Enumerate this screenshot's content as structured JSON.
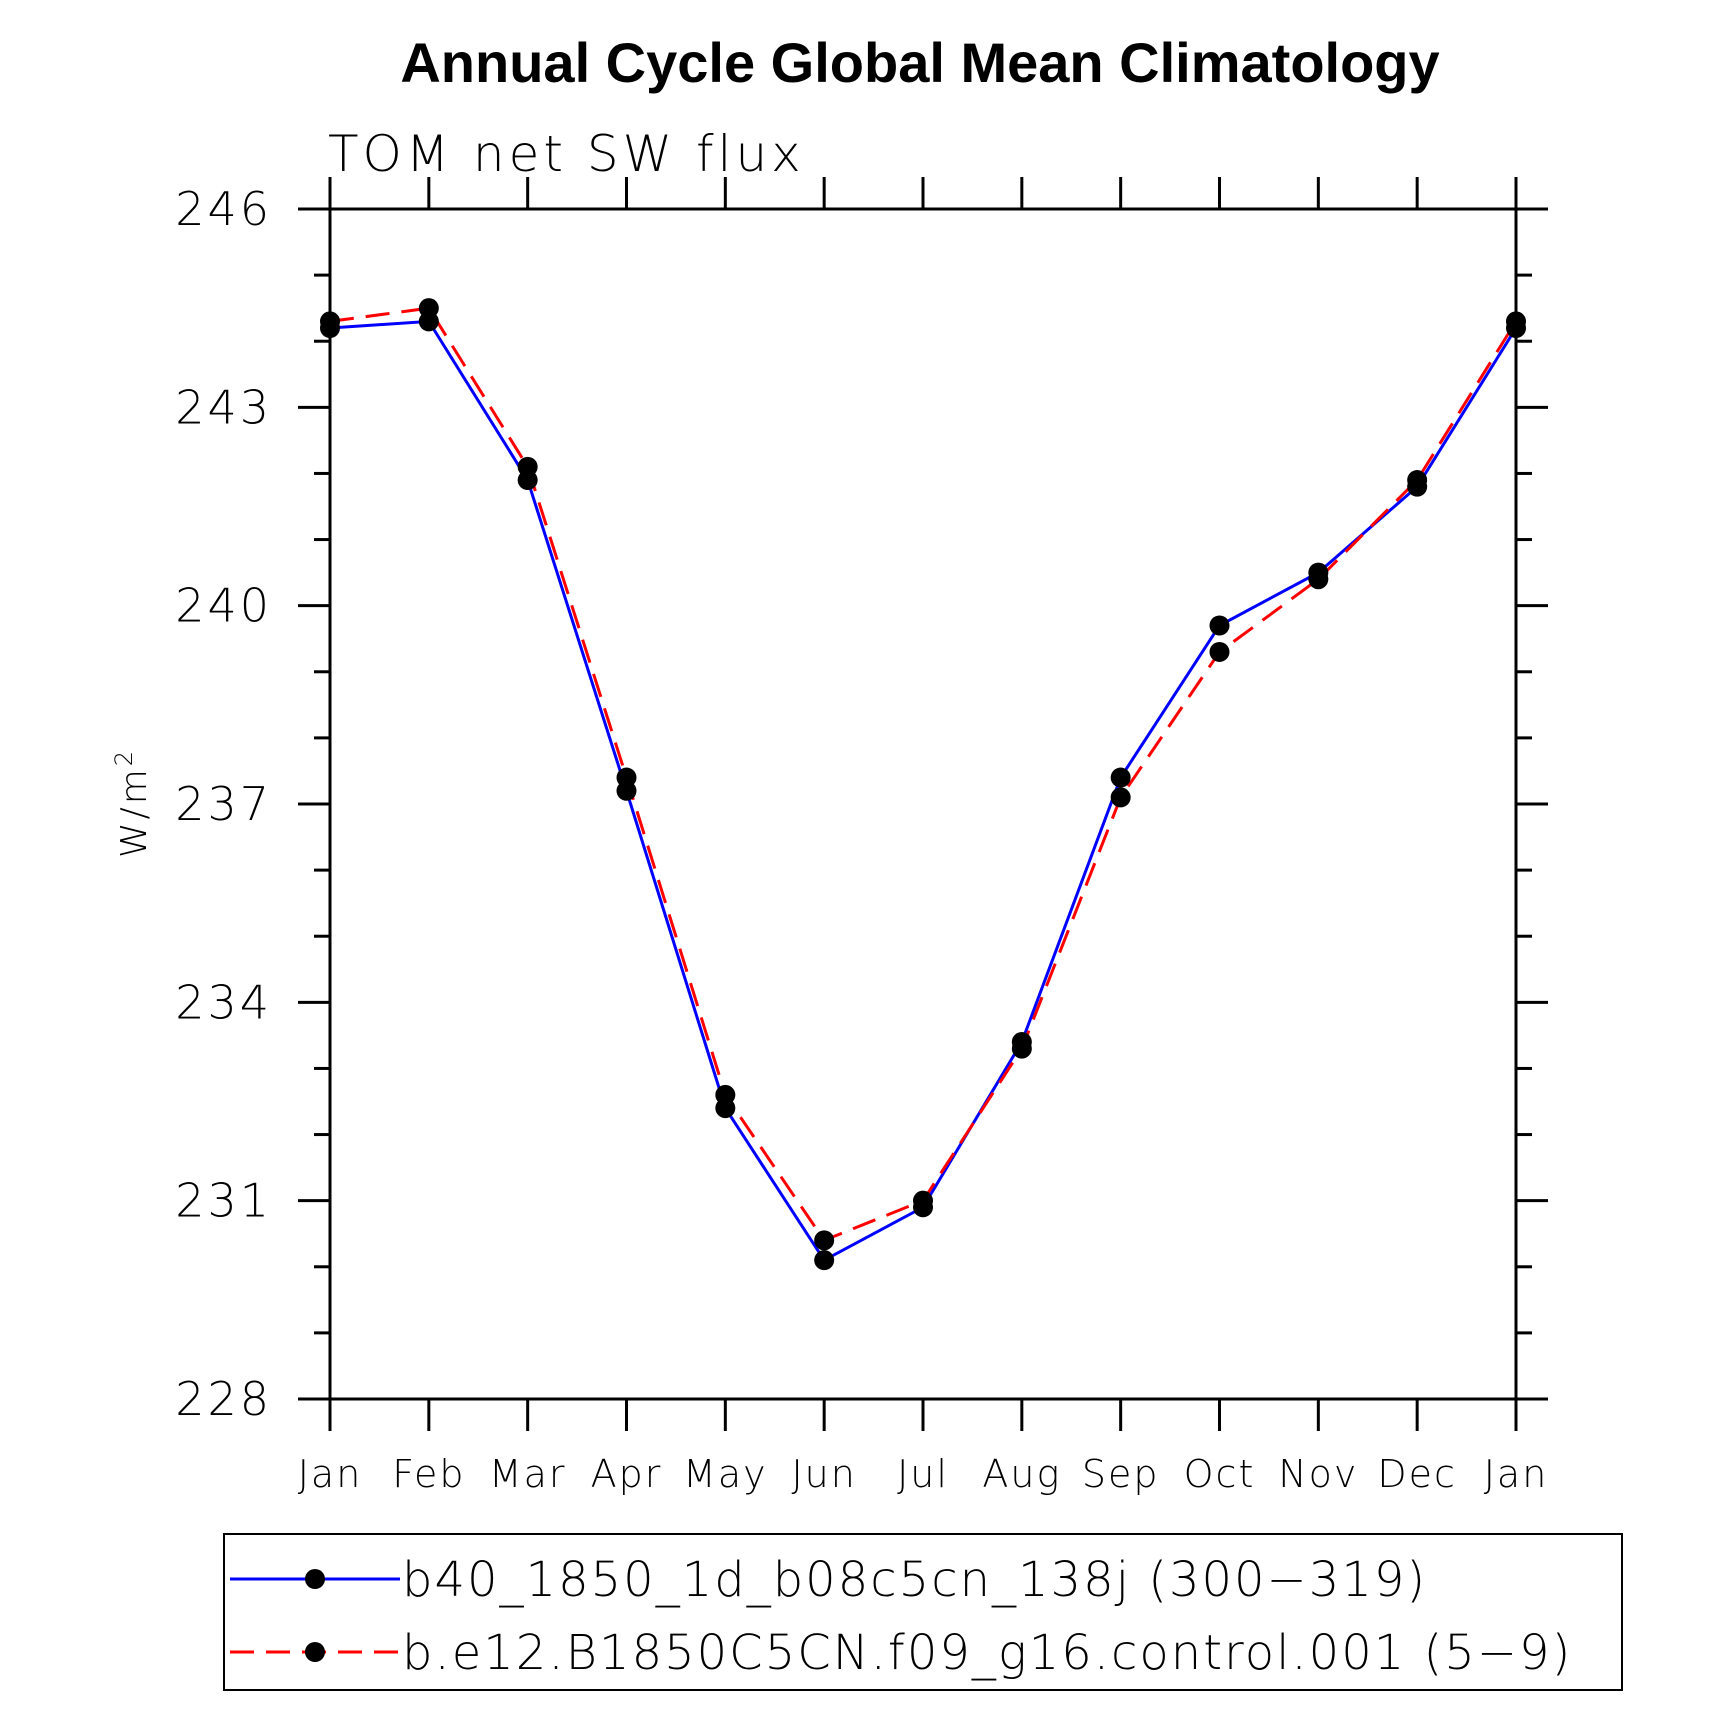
{
  "chart_data": {
    "type": "line",
    "title": "Annual Cycle Global Mean Climatology",
    "subtitle": "TOM net SW flux",
    "ylabel": "W/m",
    "ylabel_superscript": "2",
    "xlabel": "",
    "categories": [
      "Jan",
      "Feb",
      "Mar",
      "Apr",
      "May",
      "Jun",
      "Jul",
      "Aug",
      "Sep",
      "Oct",
      "Nov",
      "Dec",
      "Jan"
    ],
    "ylim": [
      228,
      246
    ],
    "yticks": [
      228,
      231,
      234,
      237,
      240,
      243,
      246
    ],
    "yticks_minor_step": 1,
    "grid": false,
    "legend_position": "bottom",
    "series": [
      {
        "name": "b40_1850_1d_b08c5cn_138j (300−319)",
        "color": "#0000ff",
        "line_style": "solid",
        "marker": "filled-circle",
        "values": [
          244.2,
          244.3,
          241.9,
          237.2,
          232.4,
          230.1,
          230.9,
          233.4,
          237.4,
          239.7,
          240.5,
          241.8,
          244.2
        ]
      },
      {
        "name": "b.e12.B1850C5CN.f09_g16.control.001 (5−9)",
        "color": "#ff0000",
        "line_style": "dashed",
        "marker": "filled-circle",
        "values": [
          244.3,
          244.5,
          242.1,
          237.4,
          232.6,
          230.4,
          231.0,
          233.3,
          237.1,
          239.3,
          240.4,
          241.9,
          244.3
        ]
      }
    ]
  }
}
